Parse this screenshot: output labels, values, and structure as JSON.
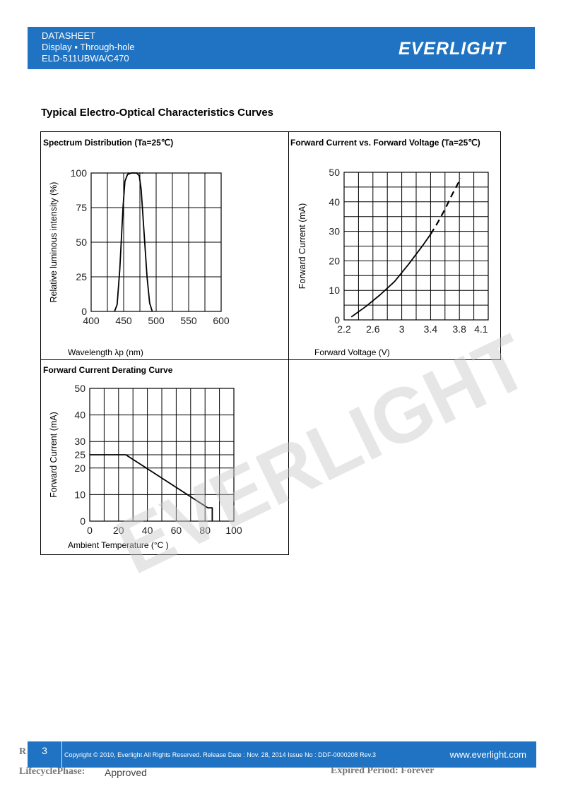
{
  "header": {
    "line1": "DATASHEET",
    "line2": "Display ▪ Through-hole",
    "line3": "ELD-511UBWA/C470",
    "logo_text": "EVERLIGHT",
    "color": "#1f73c2"
  },
  "section_title": "Typical Electro-Optical Characteristics Curves",
  "charts": [
    {
      "title": "Spectrum Distribution (Ta=25℃)",
      "xlabel": "Wavelength λp (nm)",
      "ylabel": "Relative luminous intensity (%)"
    },
    {
      "title": "Forward Current vs. Forward Voltage (Ta=25℃)",
      "xlabel": "Forward Voltage (V)",
      "ylabel": "Forward Current (mA)"
    },
    {
      "title": "Forward Current Derating Curve",
      "xlabel": "Ambient Temperature (°C )",
      "ylabel": "Forward Current (mA)"
    }
  ],
  "chart_data": [
    {
      "type": "line",
      "title": "Spectrum Distribution (Ta=25℃)",
      "xlabel": "Wavelength λp (nm)",
      "ylabel": "Relative luminous intensity (%)",
      "xlim": [
        400,
        600
      ],
      "ylim": [
        0,
        100
      ],
      "x_ticks": [
        400,
        450,
        500,
        550,
        600
      ],
      "y_ticks": [
        0,
        25,
        50,
        75,
        100
      ],
      "grid": true,
      "series": [
        {
          "x": [
            436,
            440,
            444,
            449,
            452,
            456,
            462,
            470,
            474,
            477,
            481,
            486,
            490,
            494
          ],
          "y": [
            0,
            5,
            30,
            75,
            94,
            99,
            100,
            100,
            98,
            88,
            60,
            25,
            6,
            0
          ]
        }
      ]
    },
    {
      "type": "line",
      "title": "Forward Current vs. Forward Voltage (Ta=25℃)",
      "xlabel": "Forward Voltage (V)",
      "ylabel": "Forward Current (mA)",
      "xlim": [
        2.2,
        4.2
      ],
      "ylim": [
        0,
        50
      ],
      "x_ticks": [
        2.2,
        2.6,
        3.0,
        3.4,
        3.8,
        4.1
      ],
      "y_ticks": [
        0,
        10,
        20,
        30,
        40,
        50
      ],
      "grid": true,
      "series": [
        {
          "style": "solid",
          "x": [
            2.3,
            2.5,
            2.7,
            2.9,
            3.1,
            3.3,
            3.4
          ],
          "y": [
            1,
            4.5,
            8.5,
            13,
            19,
            25.5,
            29
          ]
        },
        {
          "style": "dashed",
          "x": [
            3.4,
            3.5,
            3.6,
            3.7,
            3.82
          ],
          "y": [
            29,
            33,
            37.5,
            42.5,
            48
          ]
        }
      ]
    },
    {
      "type": "line",
      "title": "Forward Current Derating Curve",
      "xlabel": "Ambient Temperature (°C )",
      "ylabel": "Forward Current (mA)",
      "xlim": [
        0,
        100
      ],
      "ylim": [
        0,
        50
      ],
      "x_ticks": [
        0,
        20,
        40,
        60,
        80,
        100
      ],
      "y_ticks": [
        0,
        10,
        20,
        25,
        30,
        40,
        50
      ],
      "grid": true,
      "series": [
        {
          "x": [
            0,
            25,
            82,
            85,
            85
          ],
          "y": [
            25,
            25,
            5,
            5,
            0
          ]
        }
      ]
    }
  ],
  "watermark": "EVERLIGHT",
  "footer": {
    "page": "3",
    "copyright": "Copyright © 2010, Everlight All Rights Reserved. Release Date : Nov. 28, 2014 Issue No : DDF-0000208 Rev.3",
    "url": "www.everlight.com"
  },
  "under_footer": {
    "left_letter": "R",
    "lifecycle": "LifecyclePhase:",
    "approved": "Approved",
    "expired": "Expired Period: Forever"
  }
}
